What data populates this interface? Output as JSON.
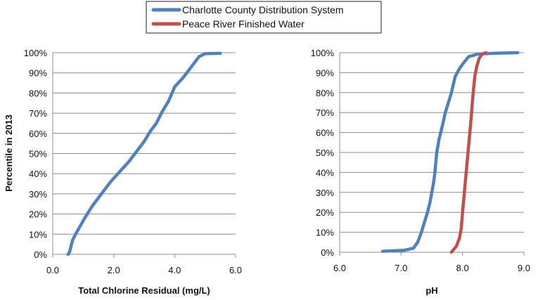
{
  "legend": {
    "entries": [
      {
        "label": "Charlotte County Distribution System",
        "color": "#4f81bd"
      },
      {
        "label": "Peace River Finished Water",
        "color": "#c0504d"
      }
    ]
  },
  "chart_data": [
    {
      "type": "line",
      "xlabel": "Total Chlorine Residual (mg/L)",
      "ylabel": "Percentile in 2013",
      "xlim": [
        0,
        6
      ],
      "ylim": [
        0,
        100
      ],
      "x_ticks": [
        "0.0",
        "2.0",
        "4.0",
        "6.0"
      ],
      "y_ticks": [
        "0%",
        "10%",
        "20%",
        "30%",
        "40%",
        "50%",
        "60%",
        "70%",
        "80%",
        "90%",
        "100%"
      ],
      "grid": "horizontal",
      "series": [
        {
          "name": "Charlotte County Distribution System",
          "color": "#4f81bd",
          "x": [
            0.5,
            0.55,
            0.65,
            0.75,
            0.9,
            1.05,
            1.3,
            1.6,
            1.9,
            2.2,
            2.5,
            2.8,
            3.0,
            3.2,
            3.4,
            3.6,
            3.8,
            4.0,
            4.3,
            4.6,
            4.8,
            5.0,
            5.5
          ],
          "y": [
            0,
            1,
            7,
            10,
            14,
            18,
            24,
            30,
            36,
            41,
            46,
            52,
            56,
            61,
            65,
            71,
            76,
            83,
            88,
            94,
            98,
            99.5,
            99.7
          ]
        }
      ]
    },
    {
      "type": "line",
      "xlabel": "pH",
      "ylabel": "",
      "xlim": [
        6,
        9
      ],
      "ylim": [
        0,
        100
      ],
      "x_ticks": [
        "6.0",
        "7.0",
        "8.0",
        "9.0"
      ],
      "y_ticks": [
        "0%",
        "10%",
        "20%",
        "30%",
        "40%",
        "50%",
        "60%",
        "70%",
        "80%",
        "90%",
        "100%"
      ],
      "grid": "horizontal",
      "series": [
        {
          "name": "Charlotte County Distribution System",
          "color": "#4f81bd",
          "x": [
            6.7,
            7.05,
            7.2,
            7.27,
            7.33,
            7.38,
            7.43,
            7.47,
            7.5,
            7.53,
            7.55,
            7.58,
            7.62,
            7.67,
            7.72,
            7.77,
            7.82,
            7.88,
            7.95,
            8.02,
            8.1,
            8.25,
            8.5,
            8.9
          ],
          "y": [
            0.5,
            1,
            2,
            5,
            10,
            15,
            20,
            25,
            30,
            35,
            40,
            50,
            57,
            63,
            70,
            75,
            80,
            88,
            92,
            95,
            98,
            99.3,
            99.7,
            100
          ]
        },
        {
          "name": "Peace River Finished Water",
          "color": "#c0504d",
          "x": [
            7.82,
            7.9,
            7.95,
            7.98,
            8.0,
            8.03,
            8.06,
            8.09,
            8.12,
            8.14,
            8.16,
            8.18,
            8.2,
            8.23,
            8.27,
            8.31,
            8.35,
            8.38
          ],
          "y": [
            0,
            3,
            7,
            12,
            20,
            30,
            40,
            50,
            60,
            67,
            75,
            82,
            88,
            93,
            97,
            99,
            99.7,
            100
          ]
        }
      ]
    }
  ]
}
